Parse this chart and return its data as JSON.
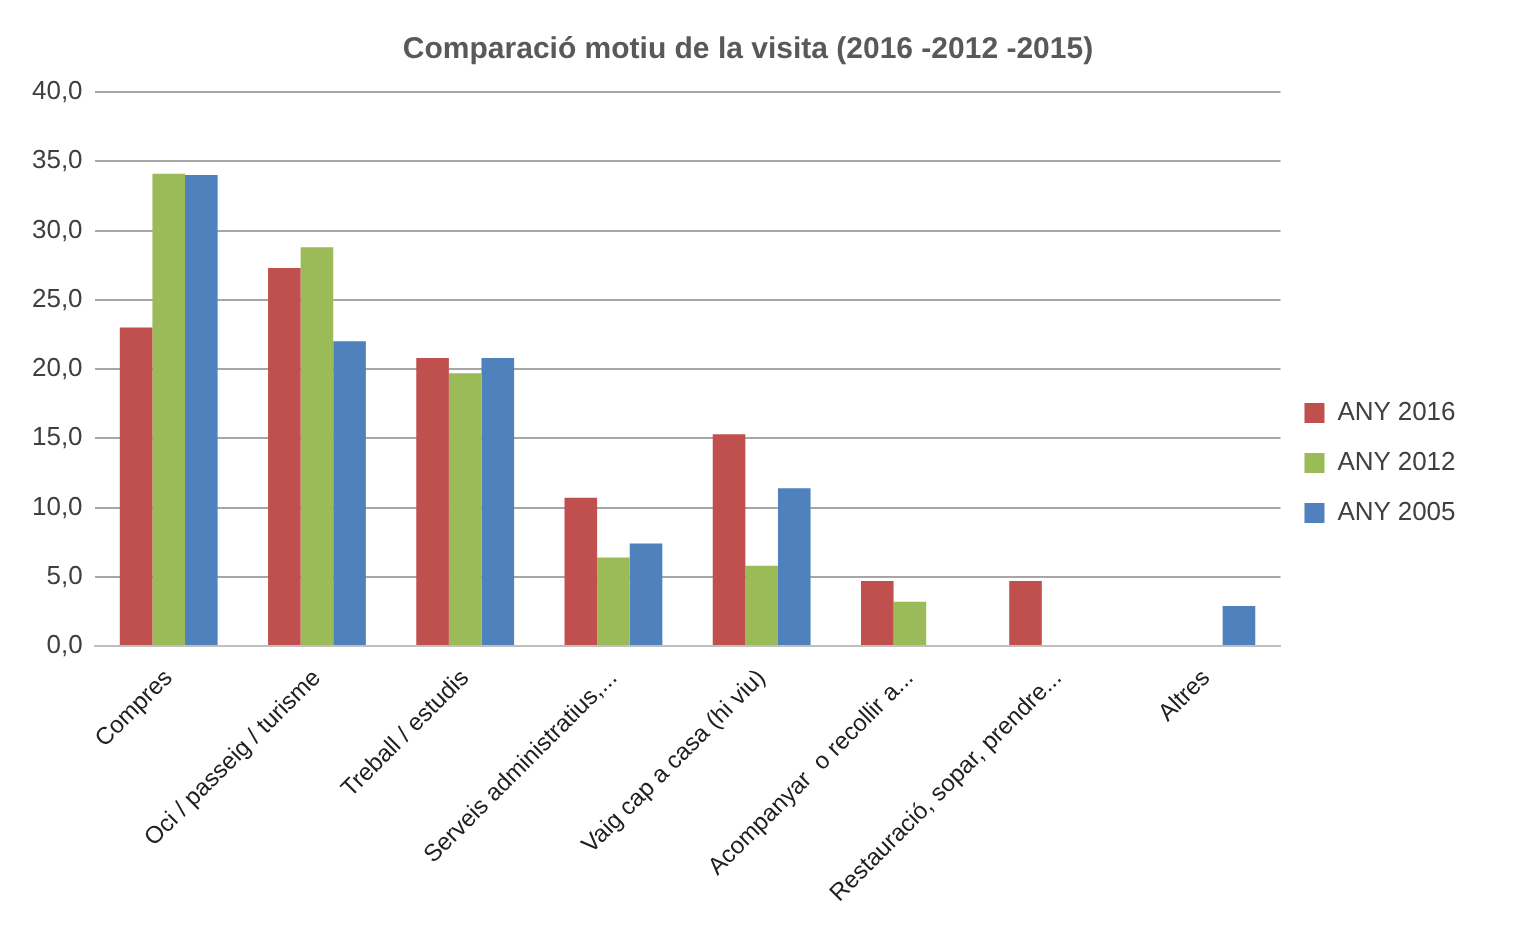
{
  "chart_data": {
    "type": "bar",
    "title": "Comparació motiu de la visita (2016 -2012 -2015)",
    "categories": [
      "Compres",
      "Oci / passeig / turisme",
      "Treball / estudis",
      "Serveis administratius,...",
      "Vaig cap a casa (hi viu)",
      "Acompanyar  o recollir a...",
      "Restauració, sopar, prendre...",
      "Altres"
    ],
    "series": [
      {
        "name": "ANY 2016",
        "color": "#c0504d",
        "values": [
          23.0,
          27.3,
          20.8,
          10.7,
          15.3,
          4.7,
          4.7,
          null
        ]
      },
      {
        "name": "ANY 2012",
        "color": "#9bbb59",
        "values": [
          34.1,
          28.8,
          19.7,
          6.4,
          5.8,
          3.2,
          null,
          null
        ]
      },
      {
        "name": "ANY 2005",
        "color": "#4f81bd",
        "values": [
          34.0,
          22.0,
          20.8,
          7.4,
          11.4,
          null,
          null,
          2.9
        ]
      }
    ],
    "ylim": [
      0,
      40
    ],
    "yticks": [
      {
        "value": 0,
        "label": "0,0"
      },
      {
        "value": 5,
        "label": "5,0"
      },
      {
        "value": 10,
        "label": "10,0"
      },
      {
        "value": 15,
        "label": "15,0"
      },
      {
        "value": 20,
        "label": "20,0"
      },
      {
        "value": 25,
        "label": "25,0"
      },
      {
        "value": 30,
        "label": "30,0"
      },
      {
        "value": 35,
        "label": "35,0"
      },
      {
        "value": 40,
        "label": "40,0"
      }
    ],
    "grid": "y",
    "legend": "right"
  }
}
